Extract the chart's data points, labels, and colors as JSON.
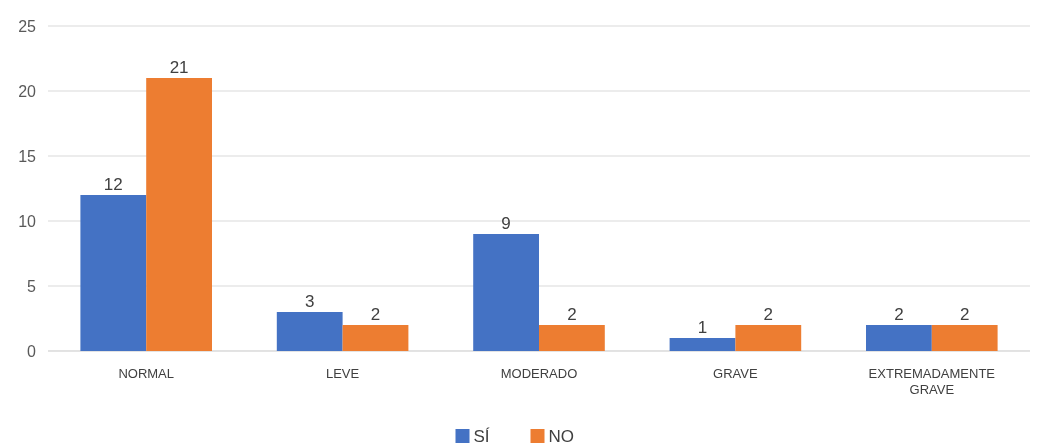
{
  "chart_data": {
    "type": "bar",
    "categories": [
      "NORMAL",
      "LEVE",
      "MODERADO",
      "GRAVE",
      "EXTREMADAMENTE GRAVE"
    ],
    "series": [
      {
        "name": "SÍ",
        "color": "#4472c4",
        "values": [
          12,
          3,
          9,
          1,
          2
        ]
      },
      {
        "name": "NO",
        "color": "#ed7d31",
        "values": [
          21,
          2,
          2,
          2,
          2
        ]
      }
    ],
    "ylim": [
      0,
      25
    ],
    "yticks": [
      0,
      5,
      10,
      15,
      20,
      25
    ],
    "grid": "y",
    "data_labels": true,
    "legend": "bottom"
  }
}
